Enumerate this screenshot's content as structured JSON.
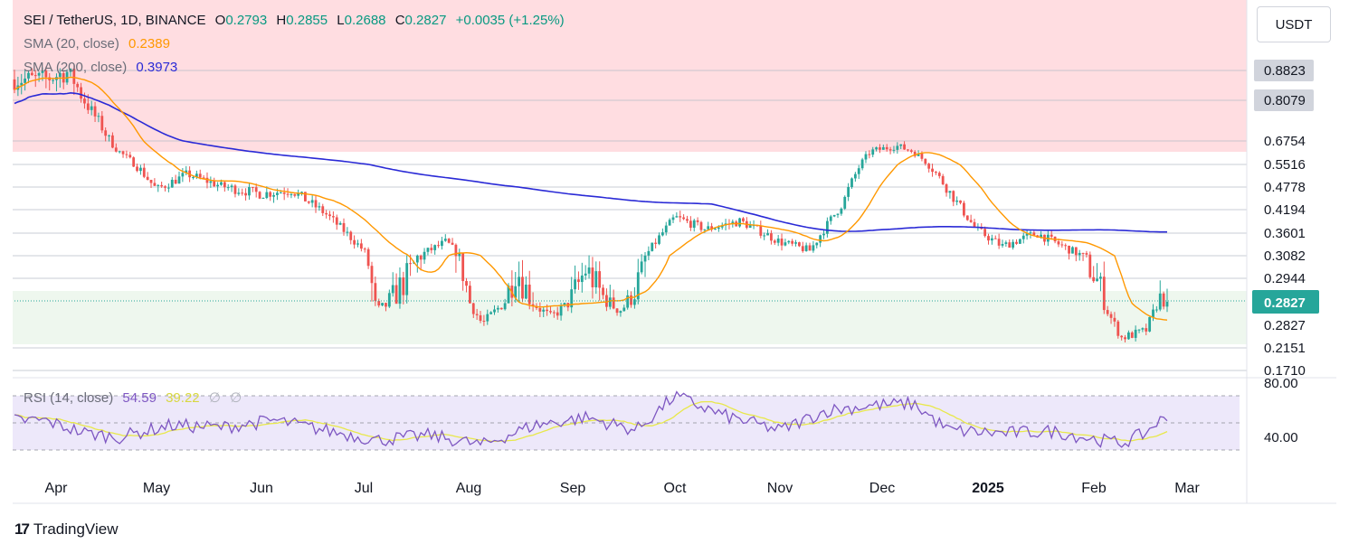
{
  "header": {
    "symbol": "SEI / TetherUS, 1D, BINANCE",
    "open_label": "O",
    "open": "0.2793",
    "high_label": "H",
    "high": "0.2855",
    "low_label": "L",
    "low": "0.2688",
    "close_label": "C",
    "close": "0.2827",
    "change": "+0.0035 (+1.25%)",
    "sma20_label": "SMA (20, close)",
    "sma20_value": "0.2389",
    "sma200_label": "SMA (200, close)",
    "sma200_value": "0.3973",
    "rsi_label": "RSI (14, close)",
    "rsi_value": "54.59",
    "rsi_ma_value": "39.22",
    "rsi_extra1": "∅",
    "rsi_extra2": "∅"
  },
  "unit": "USDT",
  "brand": {
    "logo": "17",
    "name": "TradingView"
  },
  "colors": {
    "up": "#26a69a",
    "down": "#ef5350",
    "sma20": "#ff9800",
    "sma200": "#2a2ad6",
    "rsi": "#7e57c2",
    "rsi_ma": "#e8e84a",
    "resistance_zone": "#ffdde1",
    "support_zone": "#eef7ee"
  },
  "chart_data": {
    "type": "candlestick",
    "title": "SEI / TetherUS, 1D, BINANCE",
    "x_ticks": [
      "Apr",
      "May",
      "Jun",
      "Jul",
      "Aug",
      "Sep",
      "Oct",
      "Nov",
      "Dec",
      "2025",
      "Feb",
      "Mar"
    ],
    "price_levels": [
      "0.8823",
      "0.8079",
      "0.6754",
      "0.5516",
      "0.4778",
      "0.4194",
      "0.3601",
      "0.3082",
      "0.2944",
      "0.2827",
      "0.2151",
      "0.1710"
    ],
    "current_price": "0.2827",
    "zones": {
      "resistance": {
        "from": 0.6754,
        "to": 0.92
      },
      "support": {
        "from": 0.2151,
        "to": 0.2944
      }
    },
    "price_series_approx": {
      "x": [
        "Mar 28",
        "Apr 5",
        "Apr 15",
        "Apr 20",
        "May 1",
        "May 10",
        "May 20",
        "Jun 1",
        "Jun 10",
        "Jun 20",
        "Jul 1",
        "Jul 5",
        "Jul 15",
        "Jul 25",
        "Aug 5",
        "Aug 15",
        "Aug 25",
        "Sep 5",
        "Sep 15",
        "Sep 22",
        "Oct 1",
        "Oct 10",
        "Oct 20",
        "Nov 1",
        "Nov 10",
        "Nov 20",
        "Nov 28",
        "Dec 5",
        "Dec 10",
        "Dec 20",
        "Dec 28",
        "Jan 5",
        "Jan 15",
        "Jan 25",
        "Feb 3",
        "Feb 10",
        "Feb 18",
        "Feb 22"
      ],
      "close": [
        0.86,
        0.88,
        0.72,
        0.62,
        0.47,
        0.52,
        0.48,
        0.46,
        0.47,
        0.41,
        0.32,
        0.27,
        0.3,
        0.34,
        0.25,
        0.3,
        0.26,
        0.3,
        0.27,
        0.3,
        0.4,
        0.37,
        0.39,
        0.34,
        0.32,
        0.44,
        0.62,
        0.65,
        0.62,
        0.47,
        0.37,
        0.33,
        0.36,
        0.32,
        0.29,
        0.23,
        0.24,
        0.2827
      ]
    },
    "sma20_label": "SMA (20, close)",
    "sma200_label": "SMA (200, close)",
    "rsi": {
      "label": "RSI (14, close)",
      "levels": [
        "80.00",
        "40.00"
      ],
      "x": [
        "Mar 28",
        "Apr 10",
        "Apr 20",
        "May 5",
        "May 20",
        "Jun 5",
        "Jun 20",
        "Jul 5",
        "Jul 20",
        "Aug 5",
        "Aug 20",
        "Sep 5",
        "Sep 20",
        "Oct 1",
        "Oct 15",
        "Nov 1",
        "Nov 15",
        "Nov 28",
        "Dec 10",
        "Dec 20",
        "Jan 5",
        "Jan 20",
        "Feb 1",
        "Feb 10",
        "Feb 18",
        "Feb 22"
      ],
      "values": [
        55,
        42,
        38,
        50,
        48,
        55,
        45,
        35,
        40,
        30,
        50,
        58,
        45,
        80,
        60,
        45,
        65,
        70,
        72,
        45,
        42,
        44,
        36,
        32,
        42,
        54.59
      ]
    }
  }
}
